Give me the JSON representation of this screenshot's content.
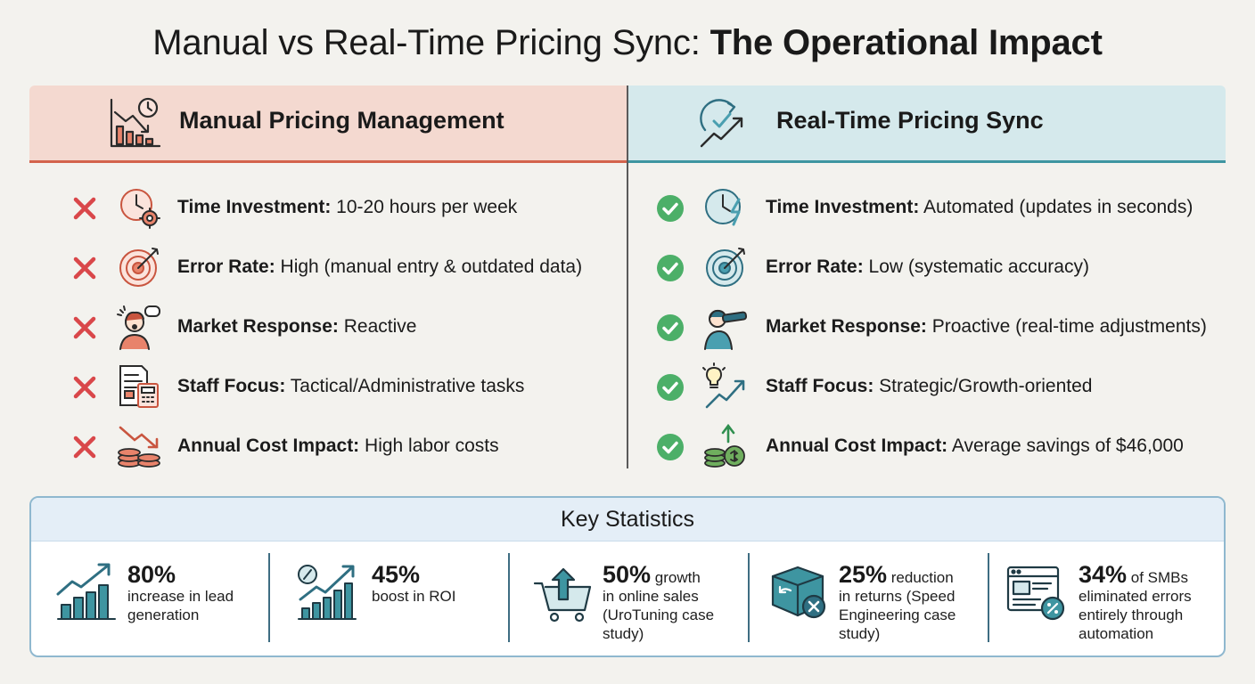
{
  "title": {
    "regular": "Manual vs Real-Time Pricing Sync: ",
    "bold": "The Operational Impact"
  },
  "manual": {
    "heading": "Manual Pricing Management",
    "heading_icon": "chart-declining-clock-icon",
    "accent": "#d3634c",
    "rows": [
      {
        "label": "Time Investment:",
        "value": " 10-20 hours per week",
        "icon": "clock-gear-icon"
      },
      {
        "label": "Error Rate:",
        "value": " High (manual entry & outdated data)",
        "icon": "target-arrow-icon"
      },
      {
        "label": "Market Response:",
        "value": " Reactive",
        "icon": "stressed-person-icon"
      },
      {
        "label": "Staff Focus:",
        "value": " Tactical/Administrative tasks",
        "icon": "document-calculator-icon"
      },
      {
        "label": "Annual Cost Impact:",
        "value": " High labor costs",
        "icon": "coins-down-arrow-icon"
      }
    ]
  },
  "realtime": {
    "heading": "Real-Time Pricing Sync",
    "heading_icon": "sync-check-growth-icon",
    "accent": "#3e95a1",
    "rows": [
      {
        "label": "Time Investment:",
        "value": " Automated (updates in seconds)",
        "icon": "clock-lightning-icon"
      },
      {
        "label": "Error Rate:",
        "value": " Low (systematic accuracy)",
        "icon": "target-bullseye-icon"
      },
      {
        "label": "Market Response:",
        "value": " Proactive (real-time adjustments)",
        "icon": "person-telescope-icon"
      },
      {
        "label": "Staff Focus:",
        "value": " Strategic/Growth-oriented",
        "icon": "lightbulb-growth-icon"
      },
      {
        "label": "Annual Cost Impact:",
        "value": " Average savings of $46,000",
        "icon": "coins-up-arrow-icon"
      }
    ]
  },
  "stats": {
    "heading": "Key Statistics",
    "items": [
      {
        "big": "80%",
        "line1": "",
        "rest": [
          "increase in lead",
          "generation"
        ],
        "icon": "bar-chart-growth-icon"
      },
      {
        "big": "45%",
        "line1": "",
        "rest": [
          "boost in ROI"
        ],
        "icon": "percent-chart-icon"
      },
      {
        "big": "50%",
        "line1": " growth",
        "rest": [
          "in online sales",
          "(UroTuning case",
          "study)"
        ],
        "icon": "shopping-cart-upload-icon"
      },
      {
        "big": "25%",
        "line1": " reduction",
        "rest": [
          "in returns (Speed",
          "Engineering case",
          "study)"
        ],
        "icon": "box-return-icon"
      },
      {
        "big": "34%",
        "line1": " of SMBs",
        "rest": [
          "eliminated errors",
          "entirely through",
          "automation"
        ],
        "icon": "browser-percent-icon"
      }
    ]
  },
  "colors": {
    "negative": "#d9474a",
    "positive": "#4caf68",
    "teal": "#2f6f82",
    "orange": "#d3634c"
  }
}
